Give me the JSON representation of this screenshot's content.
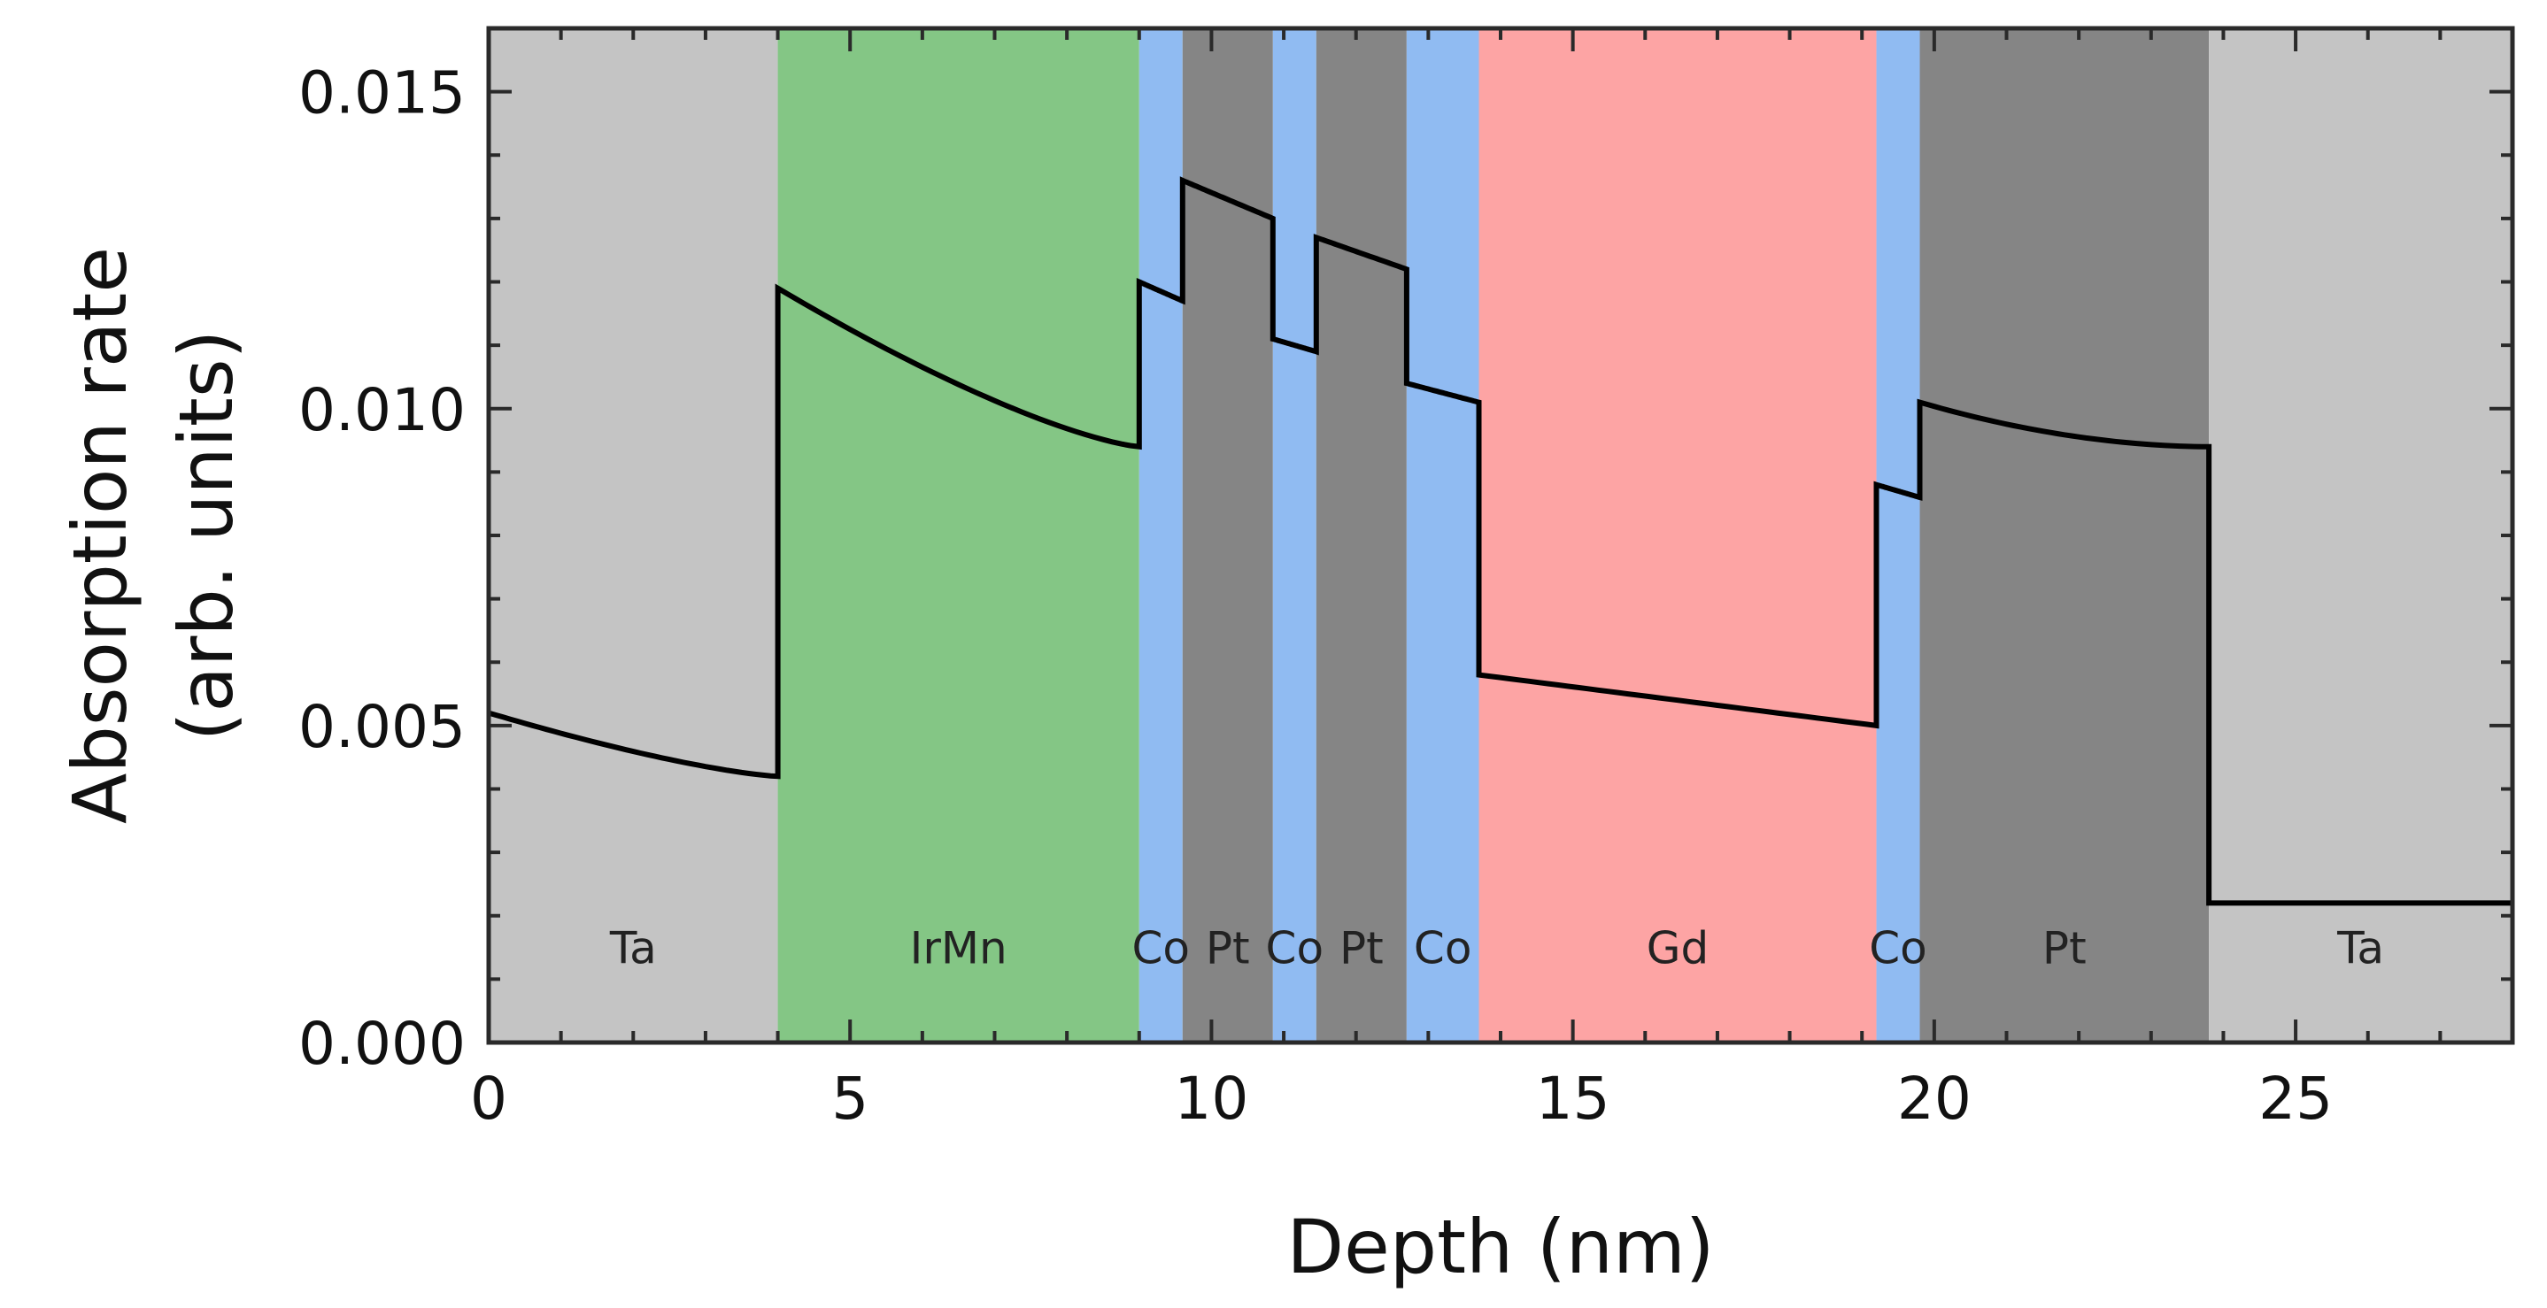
{
  "chart_data": {
    "type": "line",
    "title": "",
    "xlabel": "Depth (nm)",
    "ylabel_line1": "Absorption rate",
    "ylabel_line2": "(arb. units)",
    "xlim": [
      0,
      28
    ],
    "ylim": [
      0,
      0.016
    ],
    "xticks": [
      0,
      5,
      10,
      15,
      20,
      25
    ],
    "xtick_labels": [
      "0",
      "5",
      "10",
      "15",
      "20",
      "25"
    ],
    "yticks": [
      0,
      0.005,
      0.01,
      0.015
    ],
    "ytick_labels": [
      "0.000",
      "0.005",
      "0.010",
      "0.015"
    ],
    "x_minor_step": 1,
    "y_minor_step": 0.001,
    "grid": false,
    "layers": [
      {
        "label": "Ta",
        "start": 0.0,
        "end": 4.0,
        "color": "#c4c4c4"
      },
      {
        "label": "IrMn",
        "start": 4.0,
        "end": 9.0,
        "color": "#84c685"
      },
      {
        "label": "Co",
        "start": 9.0,
        "end": 9.6,
        "color": "#90bbf2"
      },
      {
        "label": "Pt",
        "start": 9.6,
        "end": 10.85,
        "color": "#858585"
      },
      {
        "label": "Co",
        "start": 10.85,
        "end": 11.45,
        "color": "#90bbf2"
      },
      {
        "label": "Pt",
        "start": 11.45,
        "end": 12.7,
        "color": "#858585"
      },
      {
        "label": "Co",
        "start": 12.7,
        "end": 13.7,
        "color": "#90bbf2"
      },
      {
        "label": "Gd",
        "start": 13.7,
        "end": 19.2,
        "color": "#fda4a4"
      },
      {
        "label": "Co",
        "start": 19.2,
        "end": 19.8,
        "color": "#90bbf2"
      },
      {
        "label": "Pt",
        "start": 19.8,
        "end": 23.8,
        "color": "#858585"
      },
      {
        "label": "Ta",
        "start": 23.8,
        "end": 28.0,
        "color": "#c4c4c4"
      }
    ],
    "layer_label_y": 0.0015,
    "series": [
      {
        "name": "Absorption rate",
        "color": "#000000",
        "segments": [
          {
            "x": [
              0.0,
              4.0
            ],
            "y": [
              0.0052,
              0.0042
            ],
            "curve": "concave-up"
          },
          {
            "x": [
              4.0,
              9.0
            ],
            "y": [
              0.0119,
              0.0094
            ],
            "curve": "concave-up"
          },
          {
            "x": [
              9.0,
              9.6
            ],
            "y": [
              0.012,
              0.0117
            ],
            "curve": "linear"
          },
          {
            "x": [
              9.6,
              10.85
            ],
            "y": [
              0.0136,
              0.013
            ],
            "curve": "linear"
          },
          {
            "x": [
              10.85,
              11.45
            ],
            "y": [
              0.0111,
              0.0109
            ],
            "curve": "linear"
          },
          {
            "x": [
              11.45,
              12.7
            ],
            "y": [
              0.0127,
              0.0122
            ],
            "curve": "linear"
          },
          {
            "x": [
              12.7,
              13.7
            ],
            "y": [
              0.0104,
              0.0101
            ],
            "curve": "linear"
          },
          {
            "x": [
              13.7,
              19.2
            ],
            "y": [
              0.0058,
              0.005
            ],
            "curve": "linear"
          },
          {
            "x": [
              19.2,
              19.8
            ],
            "y": [
              0.0088,
              0.0086
            ],
            "curve": "linear"
          },
          {
            "x": [
              19.8,
              23.8
            ],
            "y": [
              0.0101,
              0.0094
            ],
            "curve": "concave-down"
          },
          {
            "x": [
              23.8,
              28.0
            ],
            "y": [
              0.0022,
              0.0022
            ],
            "curve": "linear"
          }
        ]
      }
    ]
  }
}
